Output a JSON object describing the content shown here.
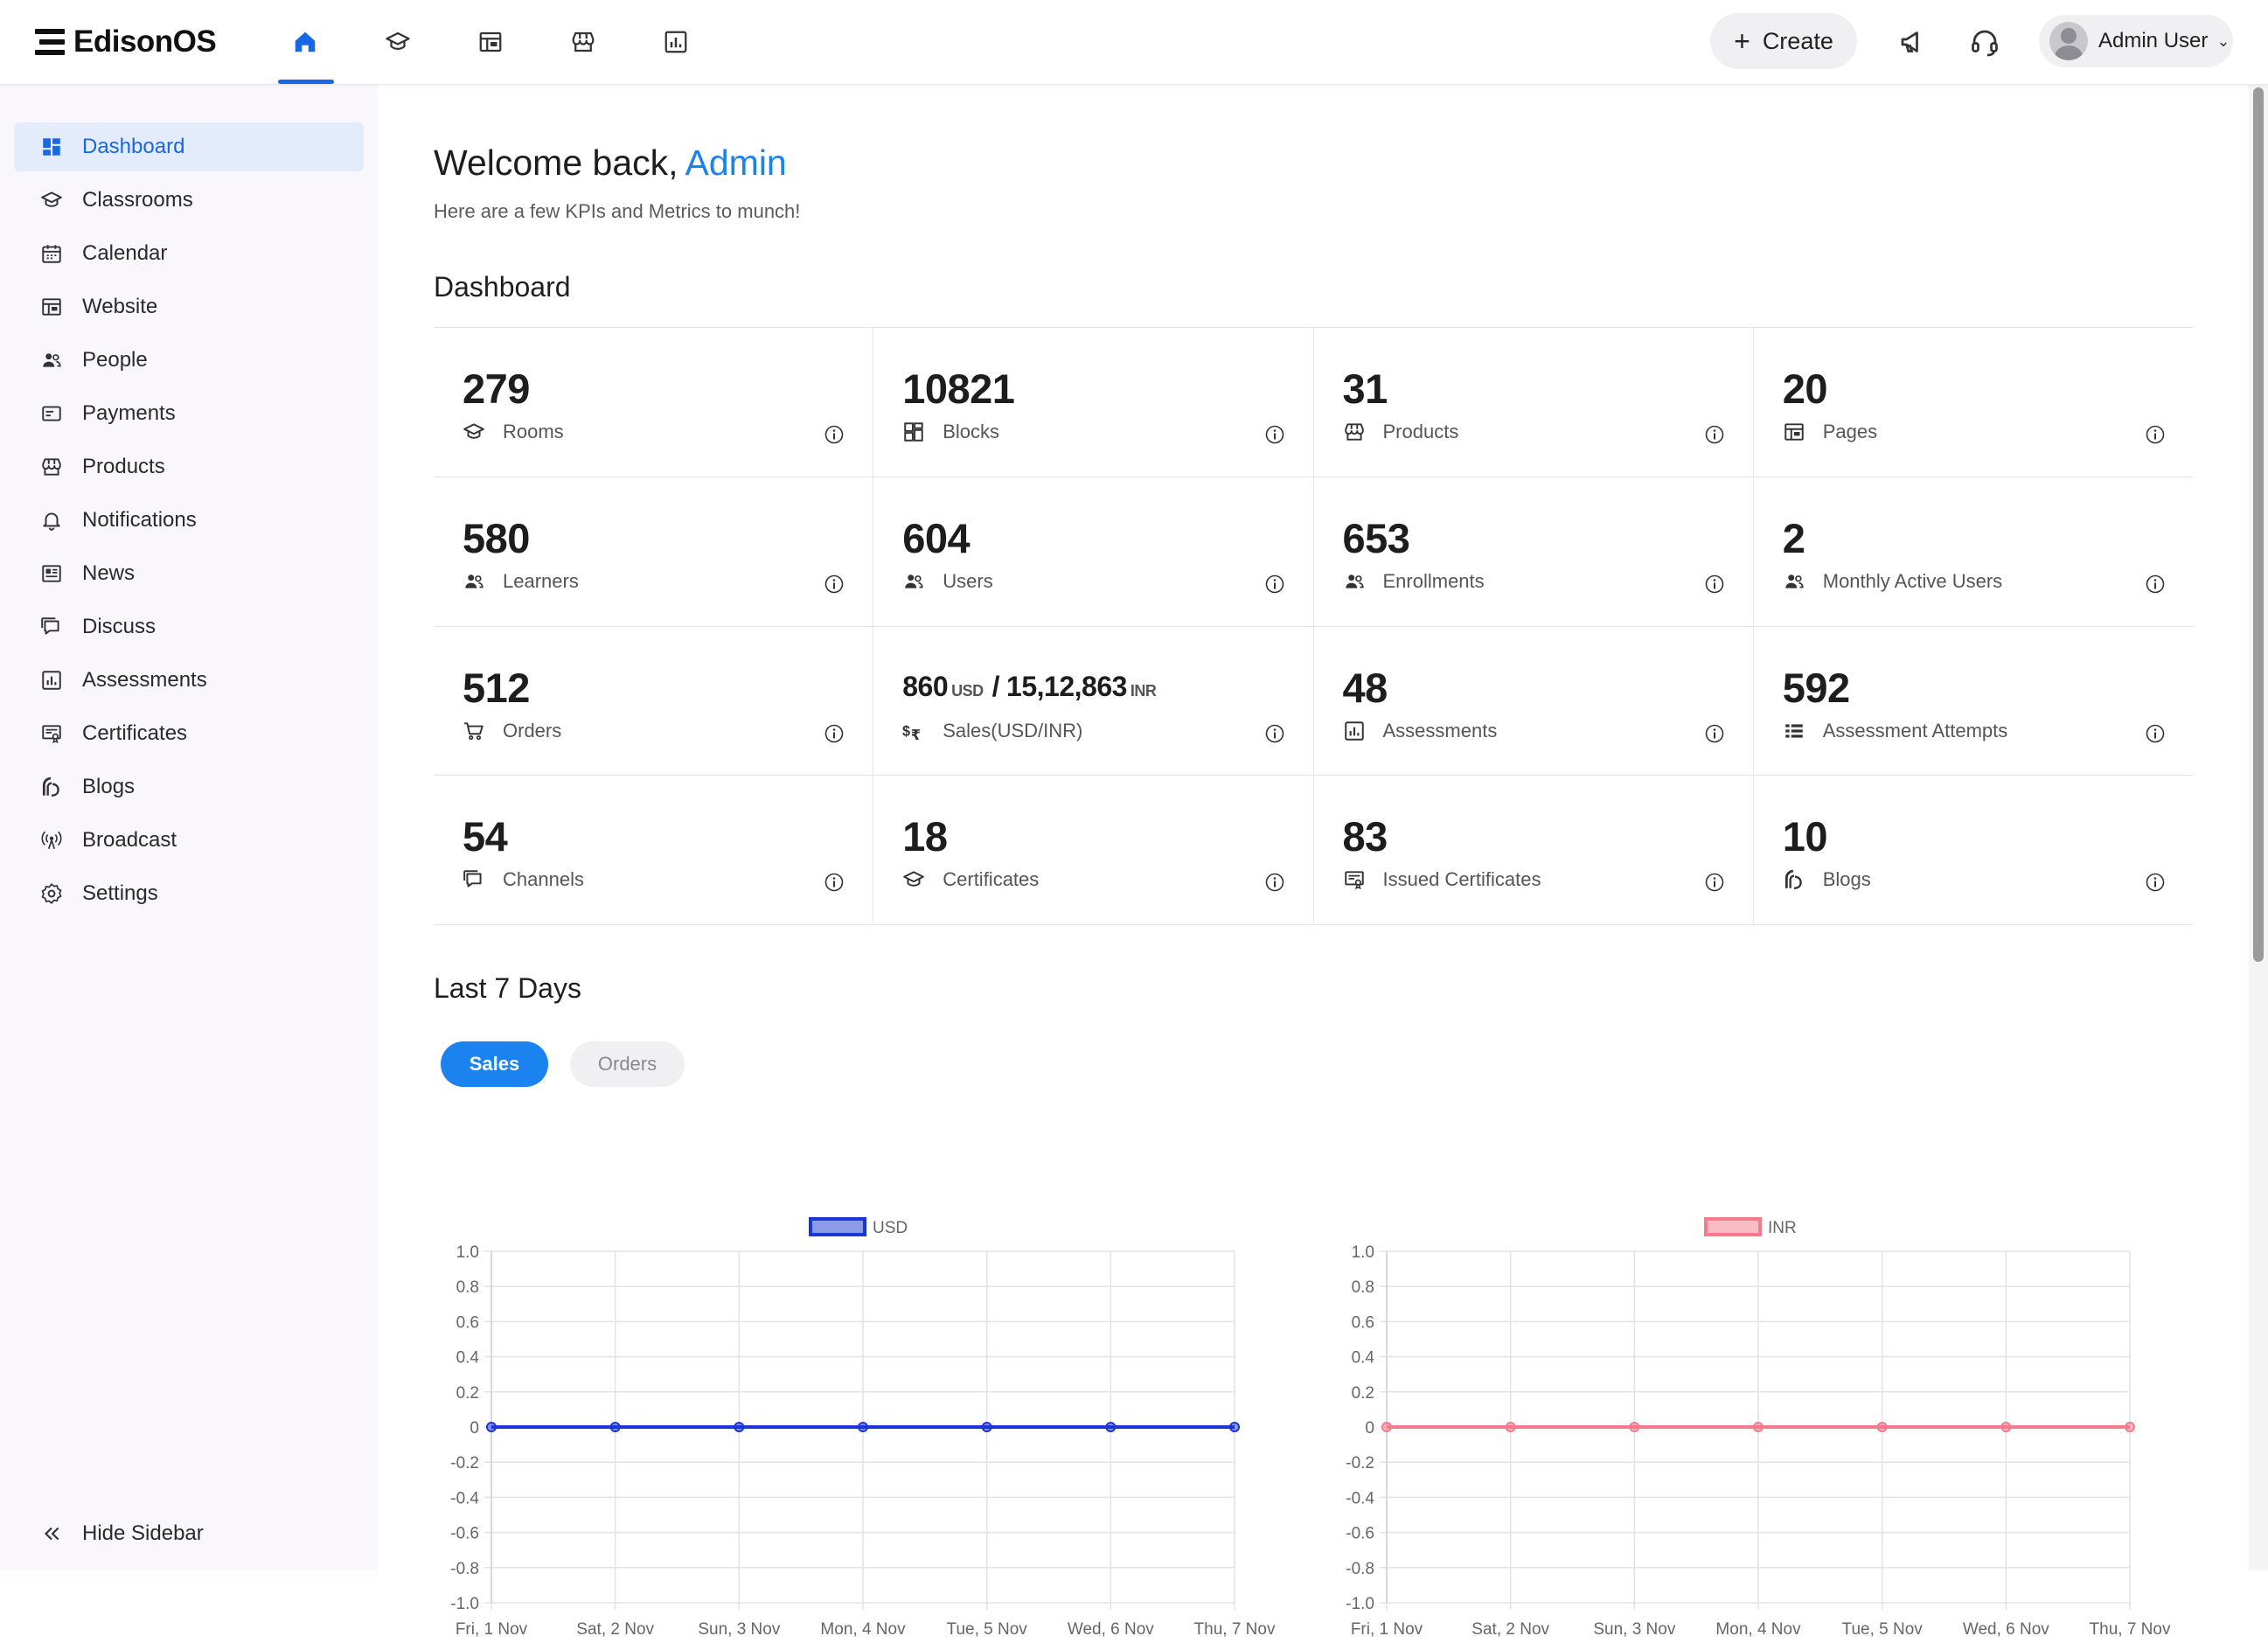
{
  "app": {
    "name": "EdisonOS"
  },
  "topnav": [
    {
      "icon": "home-icon",
      "active": true
    },
    {
      "icon": "classroom-icon",
      "active": false
    },
    {
      "icon": "website-icon",
      "active": false
    },
    {
      "icon": "store-icon",
      "active": false
    },
    {
      "icon": "analytics-icon",
      "active": false
    }
  ],
  "toolbar": {
    "create_label": "Create",
    "user_name": "Admin User"
  },
  "sidebar": {
    "items": [
      {
        "label": "Dashboard",
        "icon": "dashboard-icon",
        "active": true
      },
      {
        "label": "Classrooms",
        "icon": "classroom-icon"
      },
      {
        "label": "Calendar",
        "icon": "calendar-icon"
      },
      {
        "label": "Website",
        "icon": "website-icon"
      },
      {
        "label": "People",
        "icon": "people-icon"
      },
      {
        "label": "Payments",
        "icon": "payments-icon"
      },
      {
        "label": "Products",
        "icon": "store-icon"
      },
      {
        "label": "Notifications",
        "icon": "bell-icon"
      },
      {
        "label": "News",
        "icon": "news-icon"
      },
      {
        "label": "Discuss",
        "icon": "discuss-icon"
      },
      {
        "label": "Assessments",
        "icon": "analytics-icon"
      },
      {
        "label": "Certificates",
        "icon": "certificate-icon"
      },
      {
        "label": "Blogs",
        "icon": "blog-icon"
      },
      {
        "label": "Broadcast",
        "icon": "broadcast-icon"
      },
      {
        "label": "Settings",
        "icon": "settings-icon"
      }
    ],
    "hide_label": "Hide Sidebar"
  },
  "main": {
    "welcome": "Welcome back,",
    "welcome_name": "Admin",
    "subtitle": "Here are a few KPIs and Metrics to munch!",
    "dashboard_title": "Dashboard",
    "kpis": [
      {
        "value": "279",
        "label": "Rooms",
        "icon": "classroom-icon"
      },
      {
        "value": "10821",
        "label": "Blocks",
        "icon": "blocks-icon"
      },
      {
        "value": "31",
        "label": "Products",
        "icon": "store-icon"
      },
      {
        "value": "20",
        "label": "Pages",
        "icon": "website-icon"
      },
      {
        "value": "580",
        "label": "Learners",
        "icon": "people-icon"
      },
      {
        "value": "604",
        "label": "Users",
        "icon": "people-icon"
      },
      {
        "value": "653",
        "label": "Enrollments",
        "icon": "people-icon"
      },
      {
        "value": "2",
        "label": "Monthly Active Users",
        "icon": "people-icon"
      },
      {
        "value": "512",
        "label": "Orders",
        "icon": "cart-icon"
      },
      {
        "value": "",
        "usd": "860",
        "usd_unit": "USD",
        "sep": "/",
        "inr": "15,12,863",
        "inr_unit": "INR",
        "label": "Sales(USD/INR)",
        "icon": "currency-icon"
      },
      {
        "value": "48",
        "label": "Assessments",
        "icon": "analytics-icon"
      },
      {
        "value": "592",
        "label": "Assessment Attempts",
        "icon": "list-icon"
      },
      {
        "value": "54",
        "label": "Channels",
        "icon": "discuss-icon"
      },
      {
        "value": "18",
        "label": "Certificates",
        "icon": "classroom-icon"
      },
      {
        "value": "83",
        "label": "Issued Certificates",
        "icon": "certificate-icon"
      },
      {
        "value": "10",
        "label": "Blogs",
        "icon": "blog-icon"
      }
    ],
    "last7_title": "Last 7 Days",
    "tabs": [
      {
        "label": "Sales",
        "active": true
      },
      {
        "label": "Orders",
        "active": false
      }
    ]
  },
  "colors": {
    "accent": "#1668e3",
    "usd": "#1a36d6",
    "inr": "#f47a8c"
  },
  "chart_data": [
    {
      "type": "line",
      "categories": [
        "Fri, 1 Nov",
        "Sat, 2 Nov",
        "Sun, 3 Nov",
        "Mon, 4 Nov",
        "Tue, 5 Nov",
        "Wed, 6 Nov",
        "Thu, 7 Nov"
      ],
      "series": [
        {
          "name": "USD",
          "values": [
            0,
            0,
            0,
            0,
            0,
            0,
            0
          ]
        }
      ],
      "ylim": [
        -1.0,
        1.0
      ],
      "yticks": [
        "1.0",
        "0.8",
        "0.6",
        "0.4",
        "0.2",
        "0",
        "-0.2",
        "-0.4",
        "-0.6",
        "-0.8",
        "-1.0"
      ],
      "legend": "top-center",
      "grid": true
    },
    {
      "type": "line",
      "categories": [
        "Fri, 1 Nov",
        "Sat, 2 Nov",
        "Sun, 3 Nov",
        "Mon, 4 Nov",
        "Tue, 5 Nov",
        "Wed, 6 Nov",
        "Thu, 7 Nov"
      ],
      "series": [
        {
          "name": "INR",
          "values": [
            0,
            0,
            0,
            0,
            0,
            0,
            0
          ]
        }
      ],
      "ylim": [
        -1.0,
        1.0
      ],
      "yticks": [
        "1.0",
        "0.8",
        "0.6",
        "0.4",
        "0.2",
        "0",
        "-0.2",
        "-0.4",
        "-0.6",
        "-0.8",
        "-1.0"
      ],
      "legend": "top-center",
      "grid": true
    }
  ]
}
